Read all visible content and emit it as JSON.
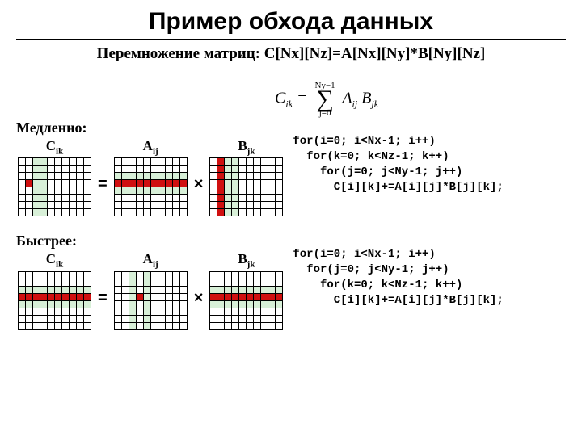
{
  "title": "Пример обхода данных",
  "subtitle": "Перемножение матриц: C[Nx][Nz]=A[Nx][Ny]*B[Ny][Nz]",
  "formula": {
    "lhs_base": "C",
    "lhs_sub": "ik",
    "sum_top": "Ny−1",
    "sum_bottom": "j=0",
    "termA_base": "A",
    "termA_sub": "ij",
    "termB_base": "B",
    "termB_sub": "jk"
  },
  "slow": {
    "heading1": "Медленно:",
    "labelC_base": "C",
    "labelC_sub": "ik",
    "labelA_base": "A",
    "labelA_sub": "ij",
    "labelB_base": "B",
    "labelB_sub": "jk",
    "op_eq": "=",
    "op_mul": "×",
    "code": "for(i=0; i<Nx-1; i++)\n  for(k=0; k<Nz-1; k++)\n    for(j=0; j<Ny-1; j++)\n      C[i][k]+=A[i][j]*B[j][k];",
    "grid": {
      "rows": 8,
      "cols": 10
    },
    "C": {
      "dark": [
        [
          3,
          1
        ]
      ],
      "light_cols": [
        2,
        3
      ],
      "light_rows": []
    },
    "A": {
      "dark_row": 3,
      "light_rows": [
        2,
        4
      ]
    },
    "B": {
      "dark_col": 1,
      "light_cols": [
        2,
        3
      ]
    }
  },
  "fast": {
    "heading1": "Быстрее:",
    "labelC_base": "C",
    "labelC_sub": "ik",
    "labelA_base": "A",
    "labelA_sub": "ij",
    "labelB_base": "B",
    "labelB_sub": "jk",
    "op_eq": "=",
    "op_mul": "×",
    "code": "for(i=0; i<Nx-1; i++)\n  for(j=0; j<Ny-1; j++)\n    for(k=0; k<Nz-1; k++)\n      C[i][k]+=A[i][j]*B[j][k];",
    "grid": {
      "rows": 8,
      "cols": 10
    },
    "C": {
      "dark_row": 3,
      "light_rows": [
        2,
        4
      ]
    },
    "A": {
      "dark": [
        [
          3,
          3
        ]
      ],
      "light_cols": [
        2,
        4
      ],
      "light_rows": []
    },
    "B": {
      "dark_row": 3,
      "light_rows": [
        2,
        4
      ]
    }
  },
  "colors": {
    "dark": "#d01010",
    "light": "#d8f0d8",
    "border": "#000000",
    "bg": "#ffffff"
  }
}
